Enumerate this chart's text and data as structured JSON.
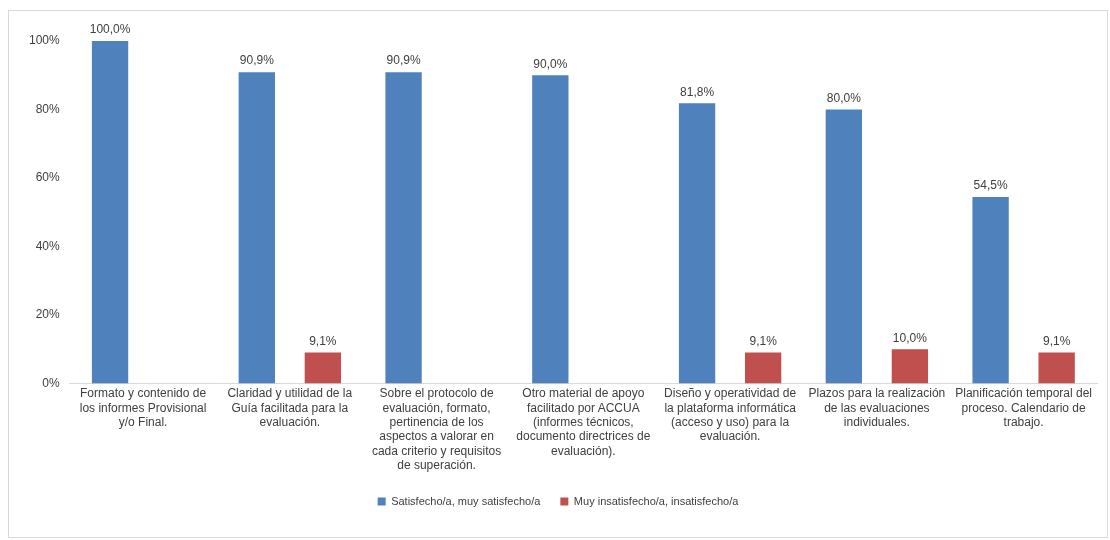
{
  "chart_data": {
    "type": "bar",
    "categories": [
      "Formato y contenido de los informes Provisional y/o Final.",
      "Claridad y utilidad de la Guía facilitada para la evaluación.",
      "Sobre el protocolo de evaluación, formato, pertinencia de los aspectos a valorar en cada criterio y requisitos de superación.",
      "Otro material de apoyo facilitado por ACCUA (informes técnicos, documento directrices de evaluación).",
      "Diseño y operatividad de la plataforma informática (acceso y uso) para la evaluación.",
      "Plazos para la realización de las evaluaciones individuales.",
      "Planificación temporal del proceso. Calendario de trabajo."
    ],
    "series": [
      {
        "name": "Satisfecho/a, muy satisfecho/a",
        "color": "#4f81bd",
        "values": [
          100,
          90.9,
          90.9,
          90,
          81.8,
          80,
          54.5
        ],
        "value_labels": [
          "100,0%",
          "90,9%",
          "90,9%",
          "90,0%",
          "81,8%",
          "80,0%",
          "54,5%"
        ]
      },
      {
        "name": "Muy insatisfecho/a, insatisfecho/a",
        "color": "#c0504d",
        "values": [
          null,
          9.1,
          null,
          null,
          9.1,
          10,
          9.1
        ],
        "value_labels": [
          null,
          "9,1%",
          null,
          null,
          "9,1%",
          "10,0%",
          "9,1%"
        ]
      }
    ],
    "ylim": [
      0,
      100
    ],
    "yticks": [
      {
        "value": 0,
        "label": "0%"
      },
      {
        "value": 20,
        "label": "20%"
      },
      {
        "value": 40,
        "label": "40%"
      },
      {
        "value": 60,
        "label": "60%"
      },
      {
        "value": 80,
        "label": "80%"
      },
      {
        "value": 100,
        "label": "100%"
      }
    ],
    "grid": false,
    "legend": "bottom"
  }
}
